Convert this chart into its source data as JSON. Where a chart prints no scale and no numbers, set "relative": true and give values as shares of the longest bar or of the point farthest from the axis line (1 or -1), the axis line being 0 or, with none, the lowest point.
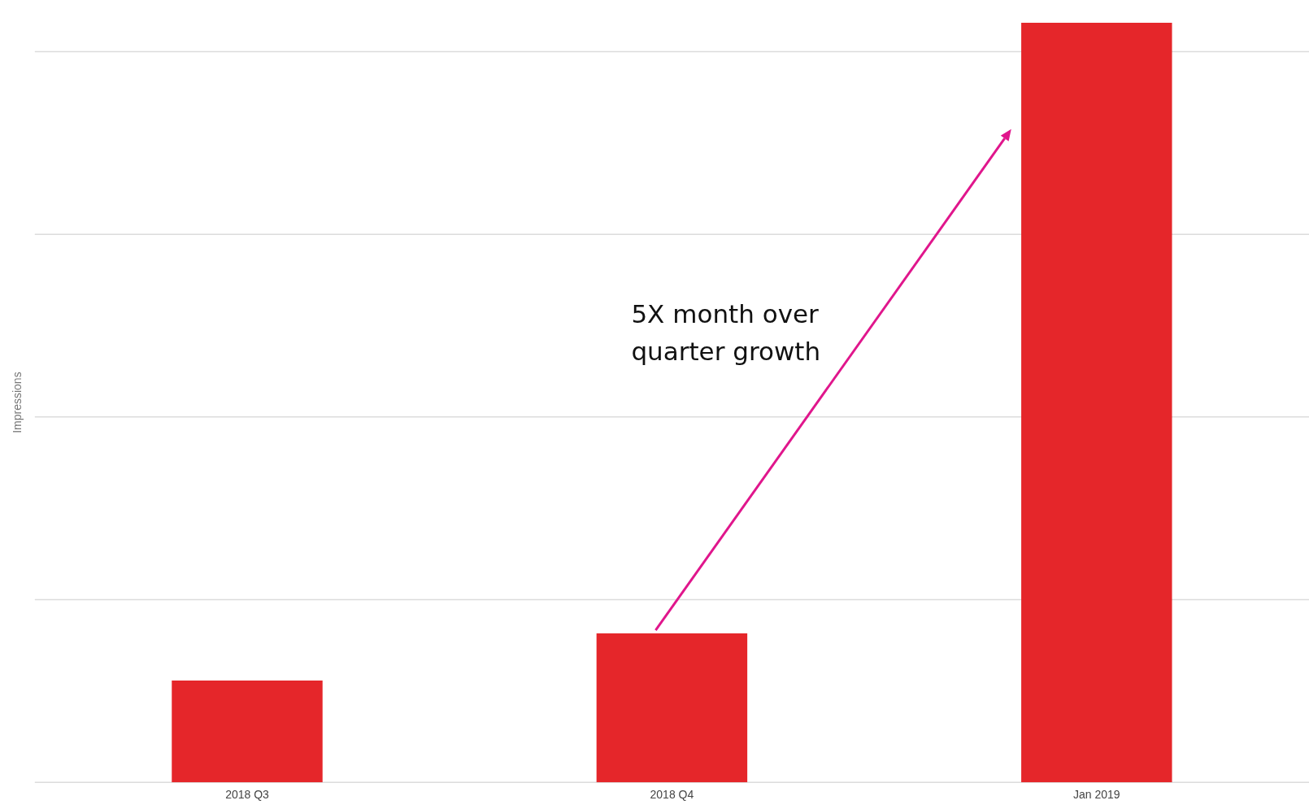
{
  "chart_data": {
    "type": "bar",
    "ylabel": "Impressions",
    "categories": [
      "2018 Q3",
      "2018 Q4",
      "Jan 2019"
    ],
    "values": [
      0.134,
      0.196,
      1
    ],
    "color": "#e5262a",
    "relative": true,
    "grid": "y",
    "annotations": [
      "5X month over\nquarter growth"
    ]
  }
}
